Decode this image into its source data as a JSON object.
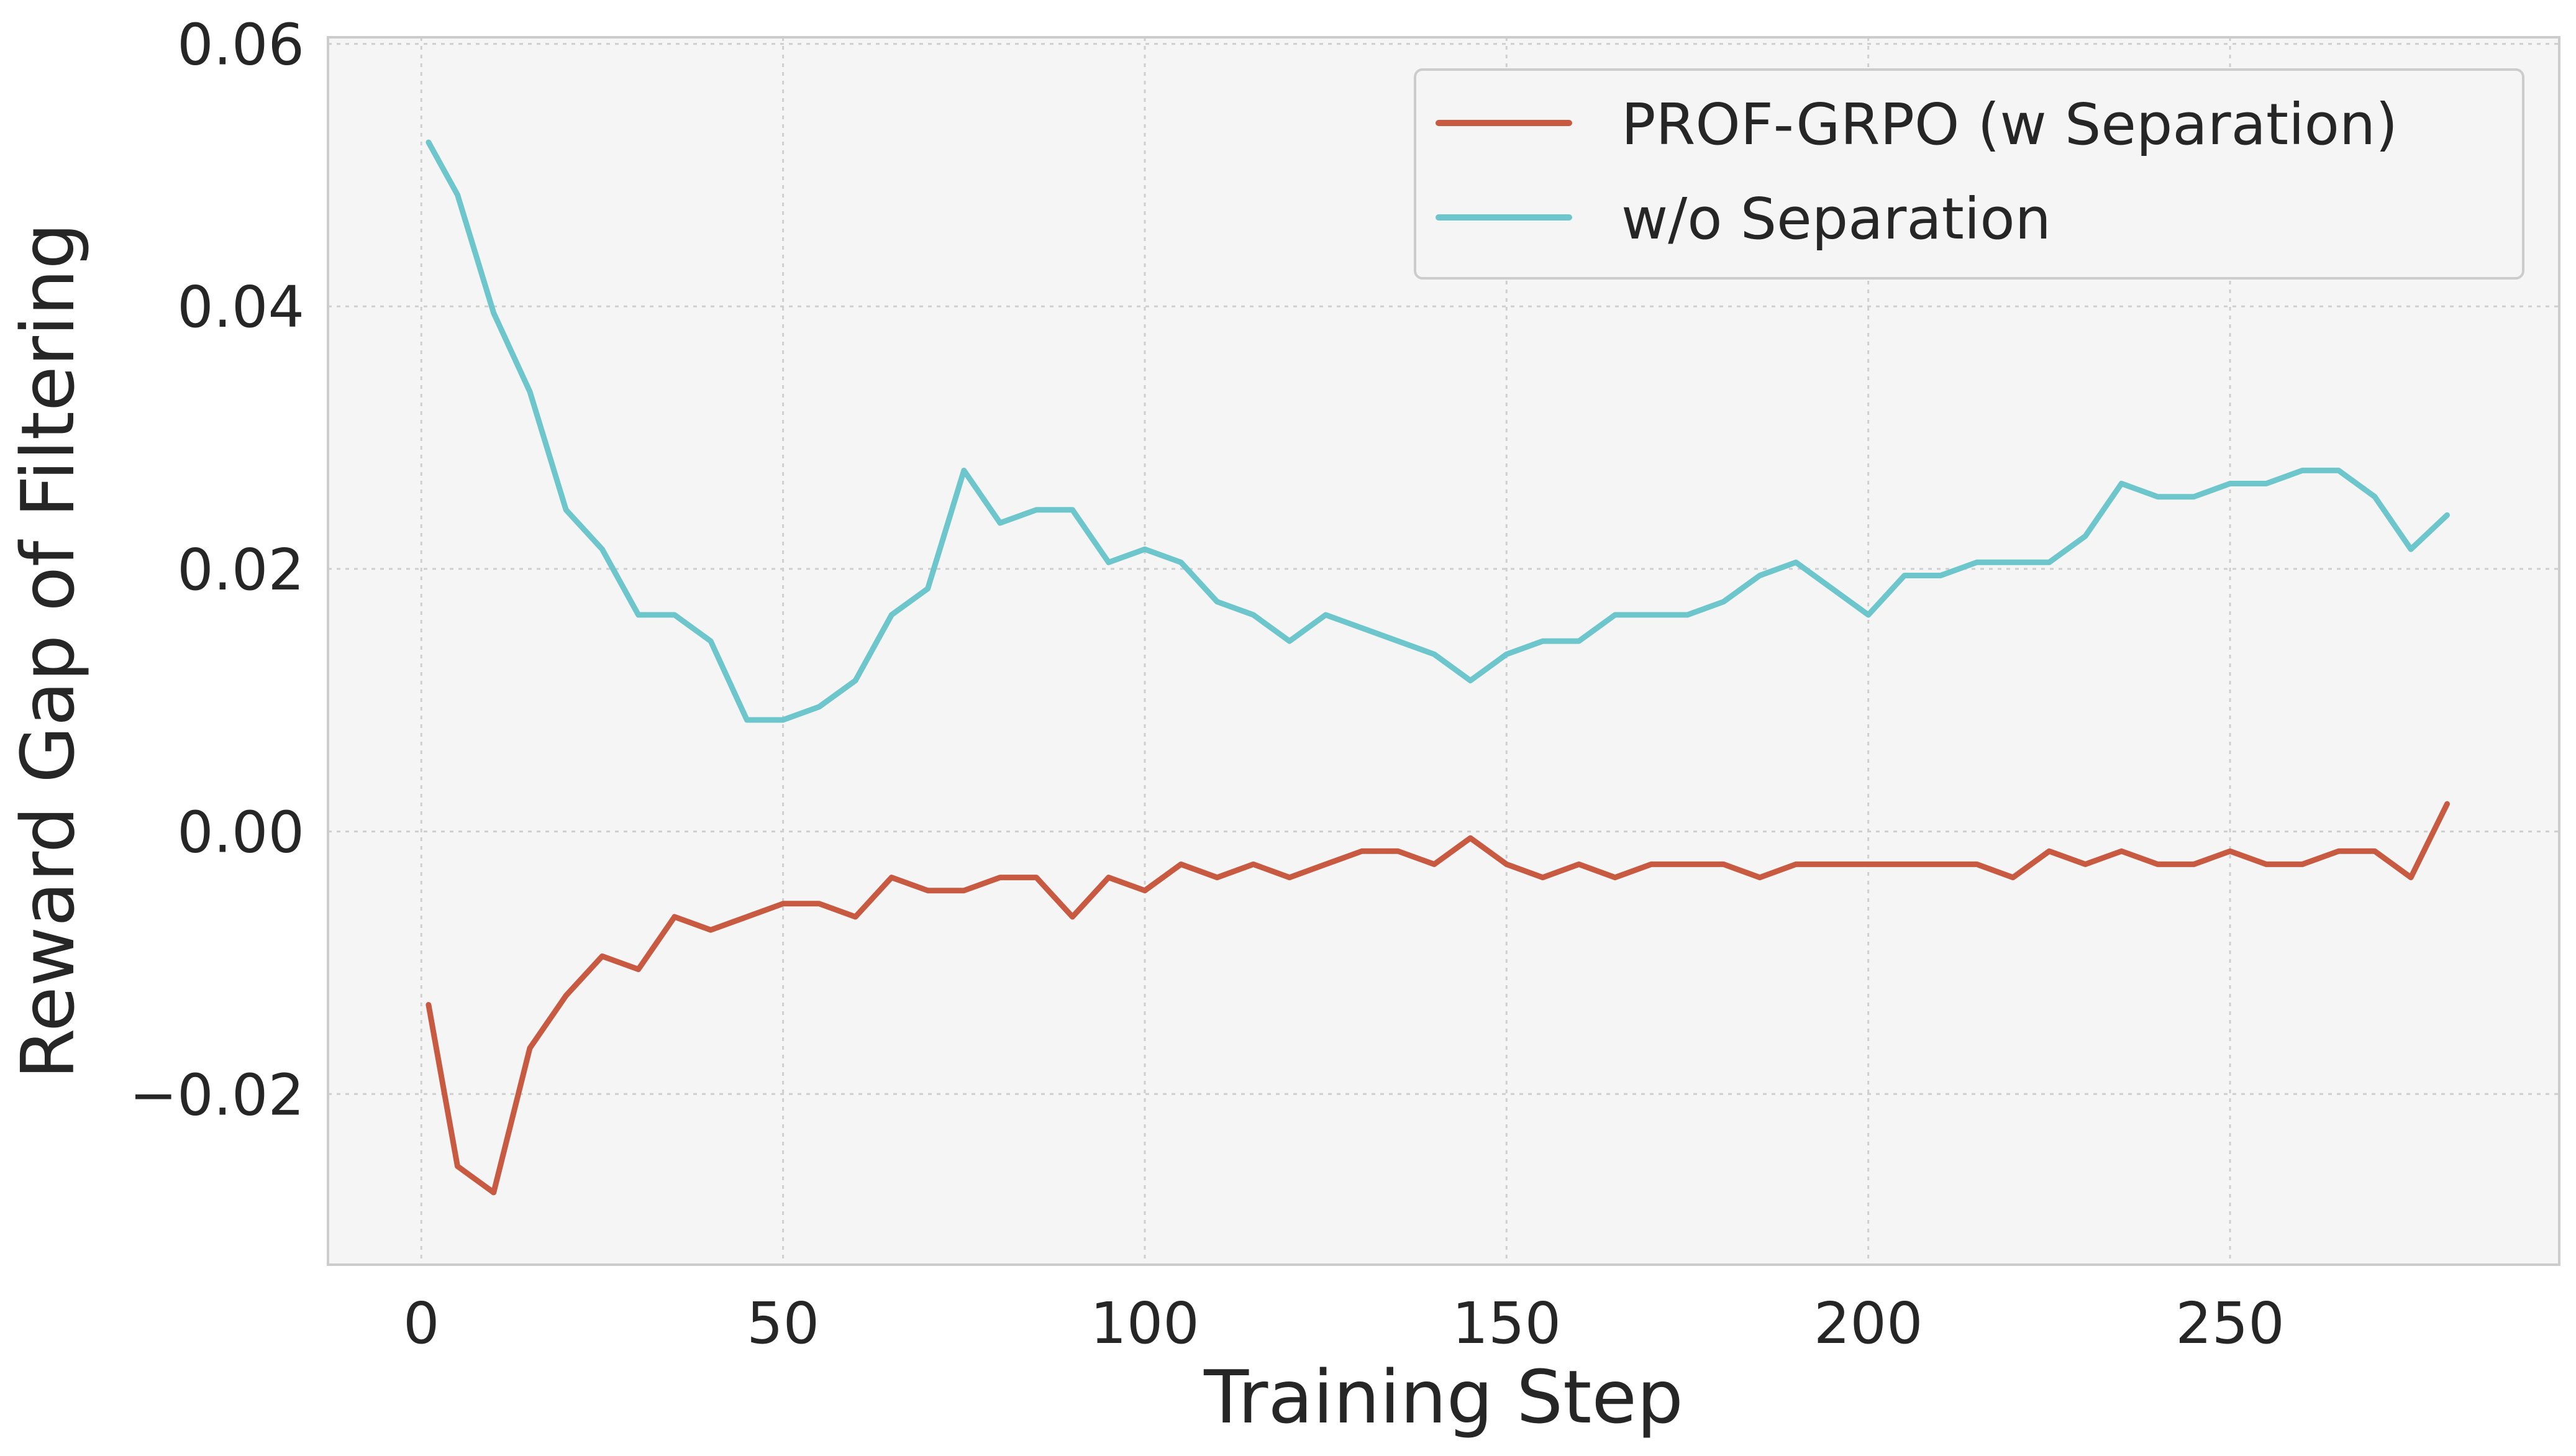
{
  "colors": {
    "background": "#ffffff",
    "plot_background": "#f5f5f5",
    "grid": "#cfcfcf",
    "spine": "#cccccc",
    "text": "#262626",
    "prof_grpo": "#c95a42",
    "wo_separation": "#6dc6cb"
  },
  "chart_data": {
    "type": "line",
    "title": "",
    "xlabel": "Training Step",
    "ylabel": "Reward Gap of Filtering",
    "xlim": [
      -12.9,
      295.5
    ],
    "ylim": [
      -0.033,
      0.0605
    ],
    "xticks": [
      0,
      50,
      100,
      150,
      200,
      250
    ],
    "xtick_labels": [
      "0",
      "50",
      "100",
      "150",
      "200",
      "250"
    ],
    "yticks": [
      -0.02,
      0.0,
      0.02,
      0.04,
      0.06
    ],
    "ytick_labels": [
      "−0.02",
      "0.00",
      "0.02",
      "0.04",
      "0.06"
    ],
    "grid": true,
    "legend_position": "top-right",
    "series": [
      {
        "name": "PROF-GRPO (w Separation)",
        "color": "#c95a42",
        "x": [
          1,
          5,
          10,
          15,
          20,
          25,
          30,
          35,
          40,
          45,
          50,
          55,
          60,
          65,
          70,
          75,
          80,
          85,
          90,
          95,
          100,
          105,
          110,
          115,
          120,
          125,
          130,
          135,
          140,
          145,
          150,
          155,
          160,
          165,
          170,
          175,
          180,
          185,
          190,
          195,
          200,
          205,
          210,
          215,
          220,
          225,
          230,
          235,
          240,
          245,
          250,
          255,
          260,
          265,
          270,
          275,
          280
        ],
        "y": [
          -0.0132,
          -0.0255,
          -0.0275,
          -0.0165,
          -0.0125,
          -0.0095,
          -0.0105,
          -0.0065,
          -0.0075,
          -0.0065,
          -0.0055,
          -0.0055,
          -0.0065,
          -0.0035,
          -0.0045,
          -0.0045,
          -0.0035,
          -0.0035,
          -0.0065,
          -0.0035,
          -0.0045,
          -0.0025,
          -0.0035,
          -0.0025,
          -0.0035,
          -0.0025,
          -0.0015,
          -0.0015,
          -0.0025,
          -0.0005,
          -0.0025,
          -0.0035,
          -0.0025,
          -0.0035,
          -0.0025,
          -0.0025,
          -0.0025,
          -0.0035,
          -0.0025,
          -0.0025,
          -0.0025,
          -0.0025,
          -0.0025,
          -0.0025,
          -0.0035,
          -0.0015,
          -0.0025,
          -0.0015,
          -0.0025,
          -0.0025,
          -0.0015,
          -0.0025,
          -0.0025,
          -0.0015,
          -0.0015,
          -0.0035,
          0.0021
        ]
      },
      {
        "name": "w/o Separation",
        "color": "#6dc6cb",
        "x": [
          1,
          5,
          10,
          15,
          20,
          25,
          30,
          35,
          40,
          45,
          50,
          55,
          60,
          65,
          70,
          75,
          80,
          85,
          90,
          95,
          100,
          105,
          110,
          115,
          120,
          125,
          130,
          135,
          140,
          145,
          150,
          155,
          160,
          165,
          170,
          175,
          180,
          185,
          190,
          195,
          200,
          205,
          210,
          215,
          220,
          225,
          230,
          235,
          240,
          245,
          250,
          255,
          260,
          265,
          270,
          275,
          280
        ],
        "y": [
          0.0525,
          0.0485,
          0.0395,
          0.0335,
          0.0245,
          0.0215,
          0.0165,
          0.0165,
          0.0145,
          0.0085,
          0.0085,
          0.0095,
          0.0115,
          0.0165,
          0.0185,
          0.0275,
          0.0235,
          0.0245,
          0.0245,
          0.0205,
          0.0215,
          0.0205,
          0.0175,
          0.0165,
          0.0145,
          0.0165,
          0.0155,
          0.0145,
          0.0135,
          0.0115,
          0.0135,
          0.0145,
          0.0145,
          0.0165,
          0.0165,
          0.0165,
          0.0175,
          0.0195,
          0.0205,
          0.0185,
          0.0165,
          0.0195,
          0.0195,
          0.0205,
          0.0205,
          0.0205,
          0.0225,
          0.0265,
          0.0255,
          0.0255,
          0.0265,
          0.0265,
          0.0275,
          0.0275,
          0.0255,
          0.0215,
          0.0241
        ]
      }
    ]
  }
}
